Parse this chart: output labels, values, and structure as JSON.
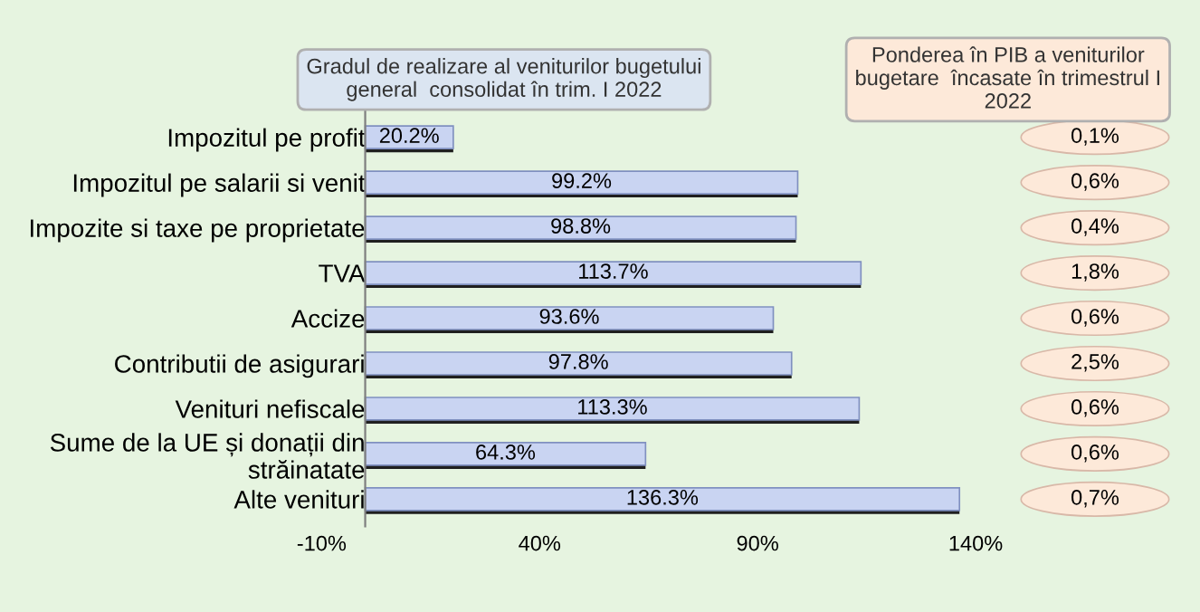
{
  "chart_data": [
    {
      "type": "bar",
      "orientation": "horizontal",
      "title": "Gradul de realizare al veniturilor bugetului\ngeneral  consolidat în trim. I 2022",
      "categories": [
        "Impozitul pe profit",
        "Impozitul pe salarii si venit",
        "Impozite si taxe pe proprietate",
        "TVA",
        "Accize",
        "Contributii de asigurari",
        "Venituri nefiscale",
        "Sume de la UE și donații din\nstrăinatate",
        "Alte venituri"
      ],
      "values": [
        20.2,
        99.2,
        98.8,
        113.7,
        93.6,
        97.8,
        113.3,
        64.3,
        136.3
      ],
      "value_labels": [
        "20.2%",
        "99.2%",
        "98.8%",
        "113.7%",
        "93.6%",
        "97.8%",
        "113.3%",
        "64.3%",
        "136.3%"
      ],
      "color": "#c9d4f2",
      "xlim": [
        -10,
        140
      ],
      "xticks": [
        {
          "value": -10,
          "label": "-10%"
        },
        {
          "value": 40,
          "label": "40%"
        },
        {
          "value": 90,
          "label": "90%"
        },
        {
          "value": 140,
          "label": "140%"
        }
      ],
      "grid": false,
      "legend": false
    },
    {
      "type": "other",
      "title": "Ponderea în PIB a veniturilor\nbugetare  încasate în trimestrul I\n2022",
      "values": [
        0.1,
        0.6,
        0.4,
        1.8,
        0.6,
        2.5,
        0.6,
        0.6,
        0.7
      ],
      "value_labels": [
        "0,1%",
        "0,6%",
        "0,4%",
        "1,8%",
        "0,6%",
        "2,5%",
        "0,6%",
        "0,6%",
        "0,7%"
      ],
      "color": "#fde9d9"
    }
  ]
}
